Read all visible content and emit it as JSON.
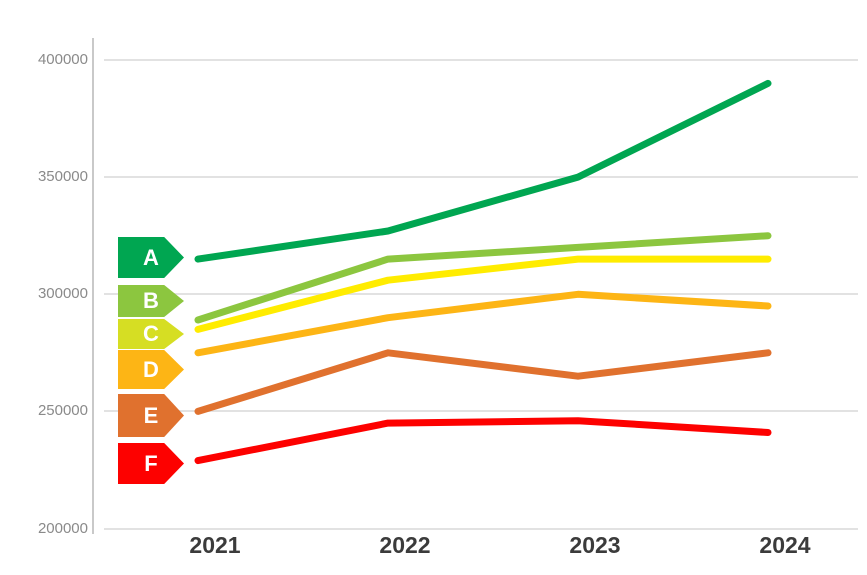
{
  "chart_data": {
    "type": "line",
    "title": "",
    "xlabel": "",
    "ylabel": "",
    "x_labels": [
      "2021",
      "2022",
      "2023",
      "2024"
    ],
    "y_ticks": [
      "400000",
      "350000",
      "300000",
      "250000",
      "200000"
    ],
    "y_tick_values": [
      400000,
      350000,
      300000,
      250000,
      200000
    ],
    "ylim": [
      200000,
      400000
    ],
    "grid": true,
    "legend_position": "left-badges",
    "series": [
      {
        "name": "A",
        "color": "#00A651",
        "badge_color": "#00A651",
        "values": [
          315000,
          327000,
          350000,
          390000
        ]
      },
      {
        "name": "B",
        "color": "#8CC63F",
        "badge_color": "#8CC63F",
        "values": [
          289000,
          315000,
          320000,
          325000
        ]
      },
      {
        "name": "C",
        "color": "#FFEC00",
        "badge_color": "#D6DE23",
        "values": [
          285000,
          306000,
          315000,
          315000
        ]
      },
      {
        "name": "D",
        "color": "#FDB515",
        "badge_color": "#FDB515",
        "values": [
          275000,
          290000,
          300000,
          295000
        ]
      },
      {
        "name": "E",
        "color": "#E0712E",
        "badge_color": "#E0712E",
        "values": [
          250000,
          275000,
          265000,
          275000
        ]
      },
      {
        "name": "F",
        "color": "#FD0100",
        "badge_color": "#FD0100",
        "values": [
          229000,
          245000,
          246000,
          241000
        ]
      }
    ]
  },
  "colors": {
    "grid": "#E2E2E2",
    "axis": "#C9C9C9",
    "y_label_text": "#8A8A8A",
    "x_label_text": "#3B3B3B",
    "background": "#FFFFFF",
    "badge_text": "#FFFFFF"
  }
}
